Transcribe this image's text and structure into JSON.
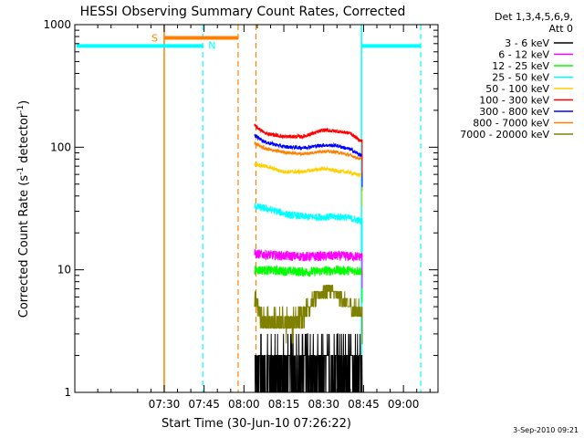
{
  "chart_data": {
    "type": "line",
    "title": "HESSI Observing Summary Count Rates, Corrected",
    "xlabel": "Start Time (30-Jun-10 07:26:22)",
    "ylabel_parts": [
      "Corrected Count Rate (s",
      "-1",
      " detector",
      "-1",
      ")"
    ],
    "y_scale": "log",
    "ylim": [
      1,
      1000
    ],
    "xlim_minutes": [
      416.37,
      553
    ],
    "x_ticks": [
      {
        "label": "07:30",
        "minute": 450
      },
      {
        "label": "07:45",
        "minute": 465
      },
      {
        "label": "08:00",
        "minute": 480
      },
      {
        "label": "08:15",
        "minute": 495
      },
      {
        "label": "08:30",
        "minute": 510
      },
      {
        "label": "08:45",
        "minute": 525
      },
      {
        "label": "09:00",
        "minute": 540
      }
    ],
    "y_ticks": [
      {
        "label": "1",
        "value": 1
      },
      {
        "label": "10",
        "value": 10
      },
      {
        "label": "100",
        "value": 100
      },
      {
        "label": "1000",
        "value": 1000
      }
    ],
    "legend": {
      "placement": "right",
      "header": [
        "Det 1,3,4,5,6,9,",
        "Att 0"
      ]
    },
    "data_start_minute": 484,
    "data_end_minute": 524.5,
    "series": [
      {
        "name": "3 - 6 keV",
        "color": "#000000",
        "points": [
          [
            484,
            1.7
          ],
          [
            494,
            1.6
          ],
          [
            504,
            1.5
          ],
          [
            514,
            1.7
          ],
          [
            524,
            1.5
          ]
        ]
      },
      {
        "name": "6 - 12 keV",
        "color": "#ff00ff",
        "points": [
          [
            484,
            13.5
          ],
          [
            494,
            13
          ],
          [
            504,
            12.8
          ],
          [
            514,
            13
          ],
          [
            524,
            12.8
          ]
        ]
      },
      {
        "name": "12 - 25 keV",
        "color": "#00ff00",
        "points": [
          [
            484,
            10
          ],
          [
            494,
            9.8
          ],
          [
            504,
            9.6
          ],
          [
            514,
            9.9
          ],
          [
            524,
            9.8
          ]
        ]
      },
      {
        "name": "25 - 50 keV",
        "color": "#00ffff",
        "points": [
          [
            484,
            33
          ],
          [
            490,
            31
          ],
          [
            497,
            28
          ],
          [
            504,
            27
          ],
          [
            512,
            27
          ],
          [
            518,
            27
          ],
          [
            524,
            25
          ]
        ]
      },
      {
        "name": "50 - 100 keV",
        "color": "#ffd000",
        "points": [
          [
            484,
            73
          ],
          [
            488,
            70
          ],
          [
            495,
            63
          ],
          [
            502,
            63
          ],
          [
            510,
            67
          ],
          [
            515,
            64
          ],
          [
            520,
            62
          ],
          [
            524,
            59
          ]
        ]
      },
      {
        "name": "100 - 300 keV",
        "color": "#ff0000",
        "points": [
          [
            484,
            150
          ],
          [
            488,
            130
          ],
          [
            495,
            122
          ],
          [
            502,
            122
          ],
          [
            510,
            138
          ],
          [
            515,
            135
          ],
          [
            520,
            130
          ],
          [
            524,
            112
          ]
        ]
      },
      {
        "name": "300 - 800 keV",
        "color": "#0000ff",
        "points": [
          [
            484,
            125
          ],
          [
            488,
            110
          ],
          [
            495,
            101
          ],
          [
            502,
            99
          ],
          [
            510,
            104
          ],
          [
            515,
            103
          ],
          [
            520,
            96
          ],
          [
            524,
            86
          ]
        ]
      },
      {
        "name": "800 - 7000 keV",
        "color": "#ff8000",
        "points": [
          [
            484,
            108
          ],
          [
            488,
            97
          ],
          [
            495,
            91
          ],
          [
            502,
            88
          ],
          [
            510,
            93
          ],
          [
            515,
            91
          ],
          [
            520,
            86
          ],
          [
            524,
            80
          ]
        ]
      },
      {
        "name": "7000 - 20000 keV",
        "color": "#808000",
        "points": [
          [
            484,
            6
          ],
          [
            486,
            4.5
          ],
          [
            488,
            3.8
          ],
          [
            494,
            3.8
          ],
          [
            500,
            3.8
          ],
          [
            504,
            5
          ],
          [
            508,
            6.2
          ],
          [
            512,
            7
          ],
          [
            516,
            6
          ],
          [
            520,
            5
          ],
          [
            524,
            4.5
          ]
        ]
      }
    ],
    "annotations": {
      "saa": {
        "label": "S",
        "color": "#ff8000",
        "start_minute": 450,
        "end_minute": 477.8,
        "level": 780
      },
      "night": {
        "label": "N",
        "color": "#00ffff",
        "segments": [
          [
            417,
            464.5
          ],
          [
            524.2,
            546.5
          ]
        ],
        "level": 670
      }
    },
    "dashed_markers": [
      {
        "color": "#00ffff",
        "minute": 464.5
      },
      {
        "color": "#ff8000",
        "minute": 477.8
      },
      {
        "color": "#ff8000",
        "minute": 484.5
      },
      {
        "color": "#00ffff",
        "minute": 546.5
      }
    ],
    "solid_markers": [
      {
        "color": "#ff8000",
        "minute": 450
      },
      {
        "color": "#00ffff",
        "minute": 524.2
      }
    ]
  },
  "footer": {
    "date": "3-Sep-2010 09:21"
  }
}
